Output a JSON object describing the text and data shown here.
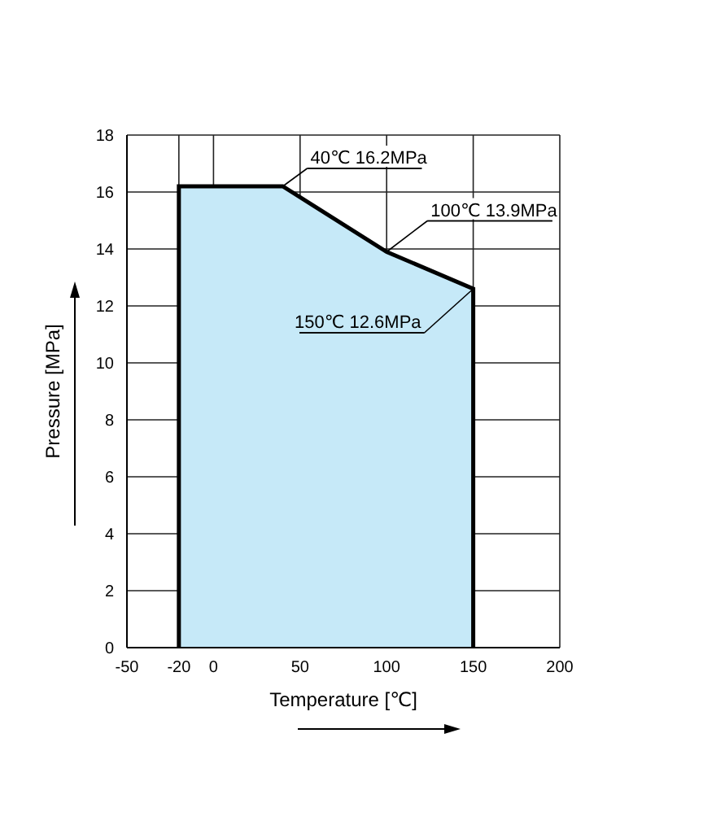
{
  "chart_data": {
    "type": "area",
    "xlabel": "Temperature [℃]",
    "ylabel": "Pressure [MPa]",
    "x": [
      -20,
      -20,
      40,
      100,
      150,
      150
    ],
    "series": [
      {
        "color": "#c6e9f8",
        "values": [
          0,
          16.2,
          16.2,
          13.9,
          12.6,
          0
        ]
      }
    ],
    "xlim": [
      -50,
      200
    ],
    "xticks": [
      -50,
      -20,
      0,
      50,
      100,
      150,
      200
    ],
    "ylim": [
      0,
      18
    ],
    "yticks": [
      0,
      2,
      4,
      6,
      8,
      10,
      12,
      14,
      16,
      18
    ],
    "grid": true,
    "annotations": [
      {
        "text": "40℃ 16.2MPa",
        "x": 40,
        "y": 16.2
      },
      {
        "text": "100℃ 13.9MPa",
        "x": 100,
        "y": 13.9
      },
      {
        "text": "150℃ 12.6MPa",
        "x": 150,
        "y": 12.6
      }
    ]
  }
}
